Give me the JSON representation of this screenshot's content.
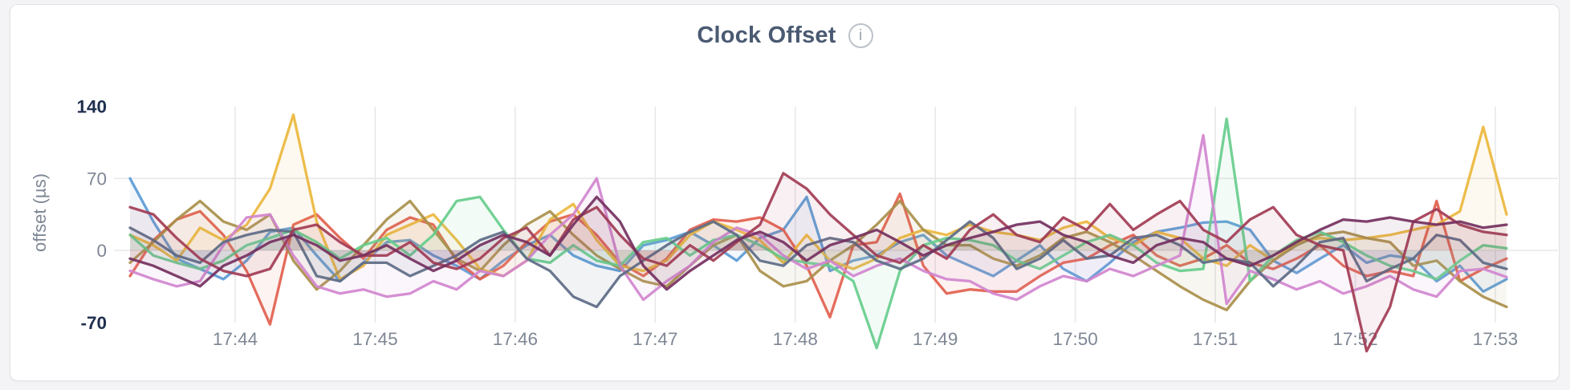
{
  "page": {
    "background": "#f4f4f6"
  },
  "card": {
    "background": "#ffffff",
    "border_color": "#e3e3e7"
  },
  "header": {
    "title": "Clock Offset",
    "info_icon_label": "i"
  },
  "chart_data": {
    "type": "line",
    "title": "Clock Offset",
    "xlabel": "",
    "ylabel": "offset (µs)",
    "ylim": [
      -70,
      140
    ],
    "grid": "on",
    "legend": "none",
    "sample_interval_seconds": 10,
    "grid_color": "#e8e8eb",
    "tick_color": "#7e8795",
    "tick_color_bounds": "#20304f",
    "yticks": [
      {
        "label": "140",
        "value": 140,
        "emphasis": true
      },
      {
        "label": "70",
        "value": 70,
        "emphasis": false
      },
      {
        "label": "0",
        "value": 0,
        "emphasis": false
      },
      {
        "label": "-70",
        "value": -70,
        "emphasis": true
      }
    ],
    "xticks": [
      "17:44",
      "17:45",
      "17:46",
      "17:47",
      "17:48",
      "17:49",
      "17:50",
      "17:51",
      "17:52",
      "17:53"
    ],
    "series": [
      {
        "name": "series-1-blue",
        "color": "#5b9bd5",
        "values": [
          70,
          28,
          -8,
          -18,
          -28,
          -10,
          18,
          22,
          -5,
          -30,
          -12,
          8,
          10,
          -5,
          -15,
          -28,
          -10,
          5,
          15,
          -5,
          -15,
          -20,
          5,
          10,
          18,
          5,
          -10,
          12,
          20,
          52,
          -20,
          -10,
          -5,
          8,
          15,
          -5,
          -15,
          -25,
          -10,
          5,
          -18,
          -30,
          -12,
          8,
          18,
          22,
          27,
          28,
          20,
          -10,
          -22,
          -8,
          5,
          -12,
          -5,
          -8,
          -30,
          -15,
          -40,
          -28
        ]
      },
      {
        "name": "series-2-salmon",
        "color": "#e2604e",
        "values": [
          -25,
          10,
          30,
          38,
          15,
          -20,
          -72,
          25,
          35,
          12,
          -8,
          20,
          32,
          25,
          -10,
          -28,
          -15,
          8,
          28,
          35,
          15,
          -12,
          -25,
          -8,
          20,
          30,
          28,
          32,
          20,
          -15,
          -65,
          5,
          8,
          55,
          -15,
          -42,
          -38,
          -40,
          -40,
          -25,
          -12,
          -8,
          5,
          15,
          -5,
          -15,
          -8,
          5,
          -12,
          -18,
          -8,
          5,
          -15,
          -25,
          -20,
          -25,
          48,
          -30,
          -18,
          -8
        ]
      },
      {
        "name": "series-3-gold",
        "color": "#ecb73d",
        "values": [
          15,
          5,
          -10,
          22,
          10,
          25,
          60,
          132,
          28,
          -28,
          -15,
          15,
          25,
          35,
          10,
          -18,
          -25,
          -10,
          30,
          45,
          10,
          -15,
          -20,
          -10,
          15,
          28,
          20,
          10,
          -12,
          15,
          -10,
          -18,
          -8,
          12,
          20,
          15,
          25,
          18,
          15,
          10,
          22,
          28,
          12,
          5,
          18,
          12,
          -8,
          -15,
          5,
          -10,
          8,
          12,
          10,
          12,
          15,
          20,
          25,
          38,
          120,
          35
        ]
      },
      {
        "name": "series-4-khaki",
        "color": "#a98f4a",
        "values": [
          -12,
          8,
          30,
          48,
          28,
          20,
          35,
          -10,
          -38,
          -20,
          5,
          30,
          48,
          20,
          -8,
          -20,
          5,
          25,
          38,
          15,
          -5,
          -18,
          -30,
          -35,
          -15,
          5,
          15,
          -20,
          -35,
          -30,
          -10,
          5,
          25,
          48,
          20,
          5,
          5,
          -8,
          -15,
          -5,
          12,
          18,
          8,
          -5,
          -20,
          -35,
          -48,
          -58,
          -30,
          -10,
          5,
          15,
          18,
          12,
          8,
          -15,
          -10,
          -30,
          -45,
          -55
        ]
      },
      {
        "name": "series-5-green",
        "color": "#67cd8c",
        "values": [
          15,
          -5,
          -12,
          -18,
          -10,
          5,
          12,
          20,
          8,
          -8,
          5,
          12,
          -5,
          15,
          48,
          52,
          20,
          -8,
          -12,
          5,
          -10,
          -15,
          8,
          12,
          -5,
          10,
          15,
          5,
          -8,
          -12,
          -15,
          -30,
          -95,
          -20,
          5,
          12,
          10,
          5,
          -10,
          -18,
          -5,
          8,
          15,
          5,
          -12,
          -20,
          -18,
          128,
          -30,
          -5,
          10,
          18,
          8,
          -5,
          -15,
          -20,
          -28,
          -10,
          5,
          2
        ]
      },
      {
        "name": "series-6-orchid",
        "color": "#d186cf",
        "values": [
          -20,
          -28,
          -35,
          -30,
          5,
          32,
          35,
          -5,
          -35,
          -42,
          -38,
          -45,
          -42,
          -30,
          -38,
          -20,
          -25,
          -10,
          15,
          35,
          70,
          -15,
          -48,
          -30,
          -15,
          8,
          22,
          15,
          -5,
          -18,
          -10,
          -25,
          -15,
          -8,
          -20,
          -28,
          -30,
          -42,
          -48,
          -35,
          -25,
          -30,
          -18,
          -25,
          -15,
          -5,
          112,
          -52,
          -20,
          -28,
          -38,
          -30,
          -42,
          -35,
          -25,
          -38,
          -45,
          -20,
          -18,
          -26
        ]
      },
      {
        "name": "series-7-slate",
        "color": "#5d6b85",
        "values": [
          22,
          10,
          -5,
          -12,
          8,
          15,
          20,
          18,
          -25,
          -30,
          -12,
          -12,
          -25,
          -15,
          -5,
          10,
          18,
          -8,
          -20,
          -45,
          -55,
          -25,
          -10,
          5,
          18,
          28,
          15,
          -10,
          -15,
          5,
          12,
          8,
          -10,
          -18,
          -8,
          10,
          28,
          12,
          -18,
          -8,
          10,
          -8,
          -5,
          12,
          15,
          5,
          -12,
          -8,
          -12,
          -35,
          -15,
          8,
          12,
          -30,
          -18,
          -8,
          15,
          10,
          -12,
          -18
        ]
      },
      {
        "name": "series-8-maroon",
        "color": "#a23c55",
        "values": [
          42,
          35,
          12,
          -8,
          -20,
          -25,
          -18,
          20,
          25,
          8,
          -5,
          -5,
          8,
          -12,
          -18,
          -8,
          12,
          22,
          -5,
          30,
          42,
          15,
          -8,
          -15,
          5,
          -10,
          8,
          25,
          75,
          60,
          35,
          15,
          -5,
          -12,
          5,
          -8,
          20,
          35,
          15,
          8,
          32,
          20,
          45,
          20,
          35,
          48,
          20,
          8,
          30,
          42,
          15,
          5,
          0,
          -98,
          -55,
          28,
          40,
          25,
          18,
          15
        ]
      },
      {
        "name": "series-9-plum",
        "color": "#74305f",
        "values": [
          -8,
          -15,
          -25,
          -35,
          -15,
          -5,
          8,
          15,
          5,
          -10,
          -5,
          5,
          -8,
          -20,
          -10,
          5,
          15,
          8,
          -5,
          25,
          52,
          28,
          -15,
          -38,
          -20,
          -5,
          10,
          18,
          8,
          -10,
          5,
          12,
          20,
          8,
          -5,
          5,
          12,
          18,
          25,
          28,
          15,
          8,
          -5,
          -12,
          5,
          12,
          8,
          -8,
          -15,
          -5,
          8,
          20,
          30,
          28,
          32,
          28,
          25,
          28,
          22,
          25
        ]
      }
    ]
  }
}
